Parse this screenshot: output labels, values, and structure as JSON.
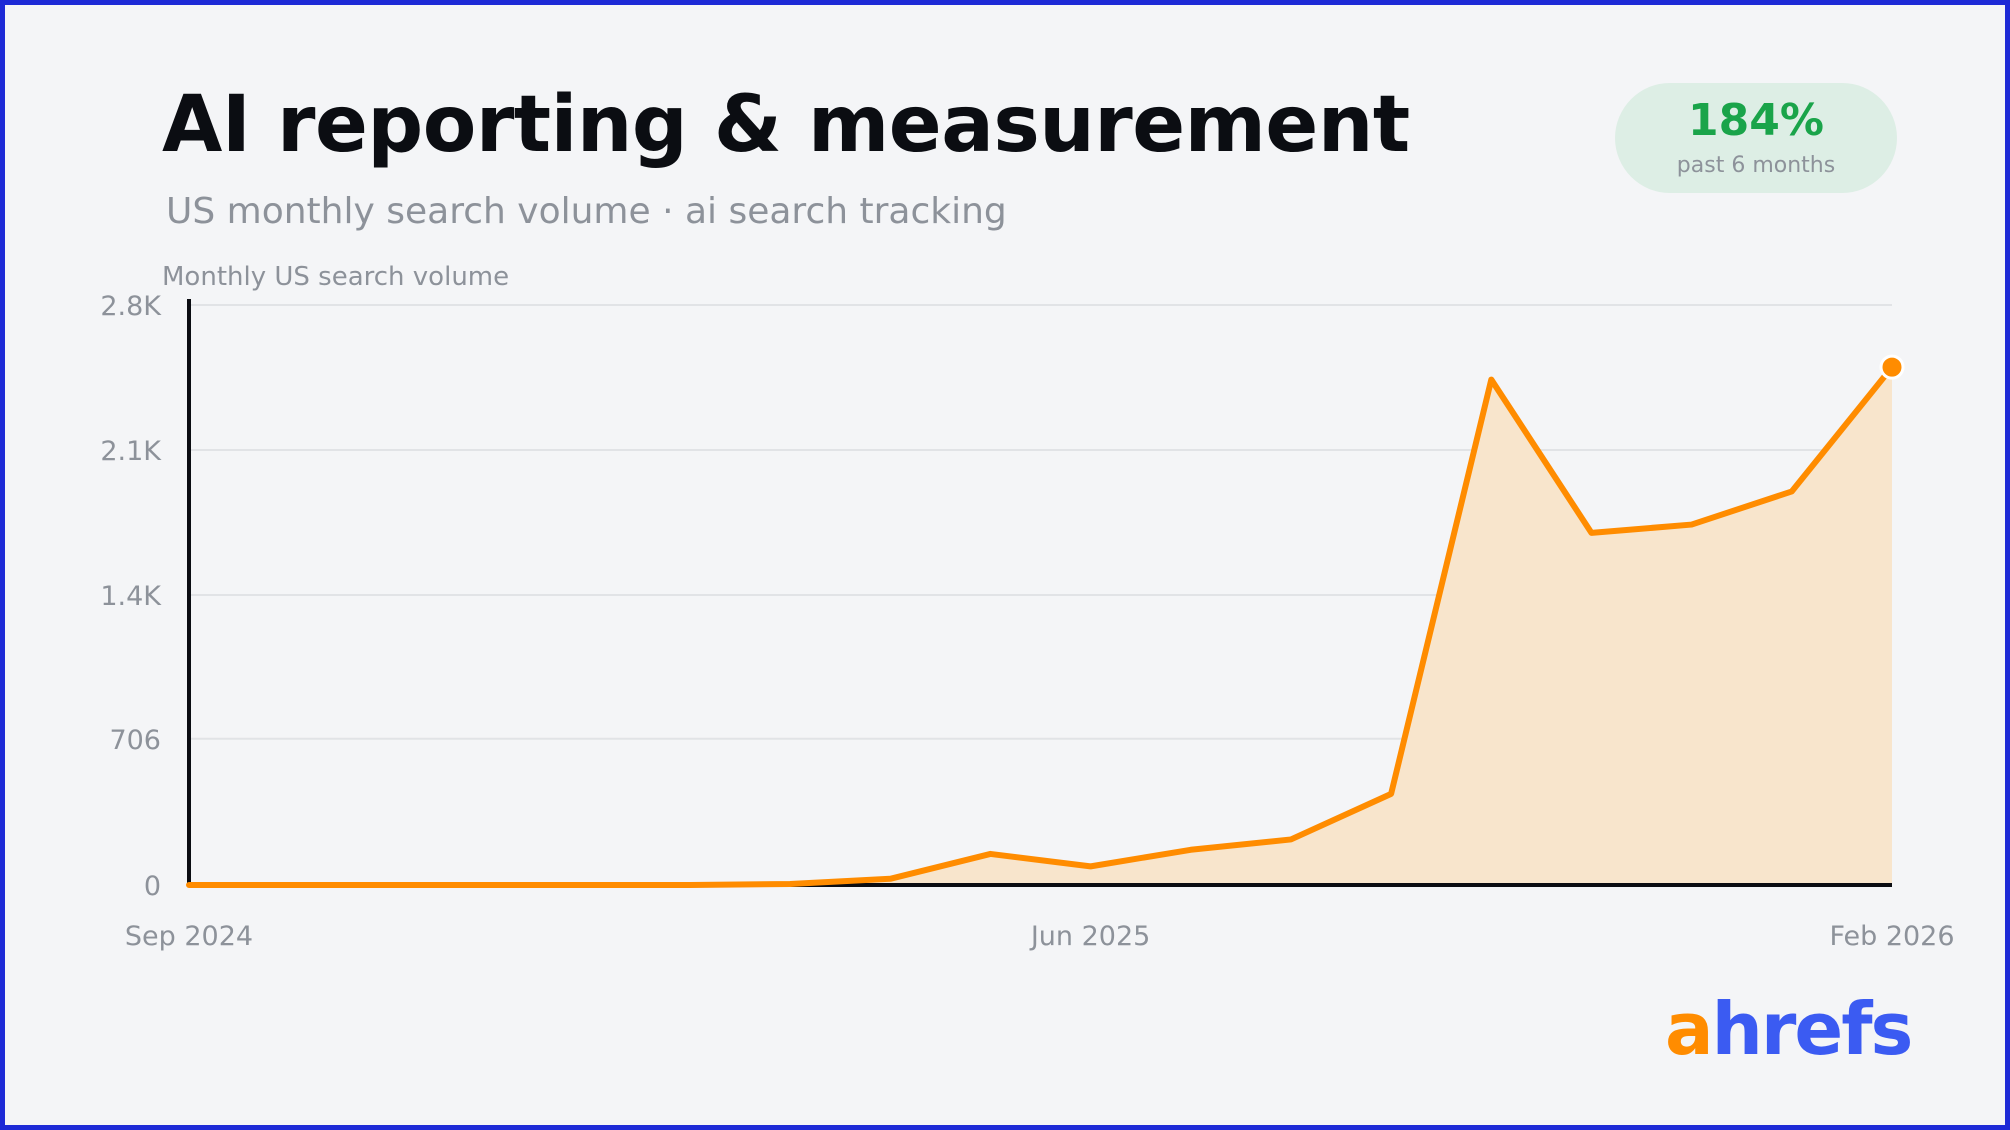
{
  "header": {
    "title": "AI reporting & measurement",
    "subtitle": "US monthly search volume · ai search tracking"
  },
  "badge": {
    "value": "184%",
    "label": "past 6 months",
    "background": "#ddeee5",
    "color": "#1aa44a"
  },
  "logo": {
    "first": "a",
    "rest": "hrefs",
    "first_color": "#ff8c00",
    "rest_color": "#3b5bf2"
  },
  "chart_data": {
    "type": "area",
    "ylabel": "Monthly US search volume",
    "x": [
      "Sep 2024",
      "Oct 2024",
      "Nov 2024",
      "Dec 2024",
      "Jan 2025",
      "Feb 2025",
      "Mar 2025",
      "Apr 2025",
      "May 2025",
      "Jun 2025",
      "Jul 2025",
      "Aug 2025",
      "Sep 2025",
      "Oct 2025",
      "Nov 2025",
      "Dec 2025",
      "Jan 2026",
      "Feb 2026"
    ],
    "series": [
      {
        "values": [
          0,
          0,
          0,
          0,
          0,
          0,
          5,
          30,
          150,
          90,
          170,
          220,
          440,
          2440,
          1700,
          1740,
          1900,
          2500
        ],
        "color": "#ff8c00",
        "fill": "#f8e5cc"
      }
    ],
    "ylim": [
      0,
      2800
    ],
    "yticks": [
      0,
      706,
      1400,
      2100,
      2800
    ],
    "ytick_labels": [
      "0",
      "706",
      "1.4K",
      "2.1K",
      "2.8K"
    ],
    "xtick_labels": [
      "Sep 2024",
      "Jun 2025",
      "Feb 2026"
    ],
    "xtick_positions": [
      "Sep 2024",
      "Jun 2025",
      "Feb 2026"
    ],
    "grid": true,
    "legend": "none"
  }
}
